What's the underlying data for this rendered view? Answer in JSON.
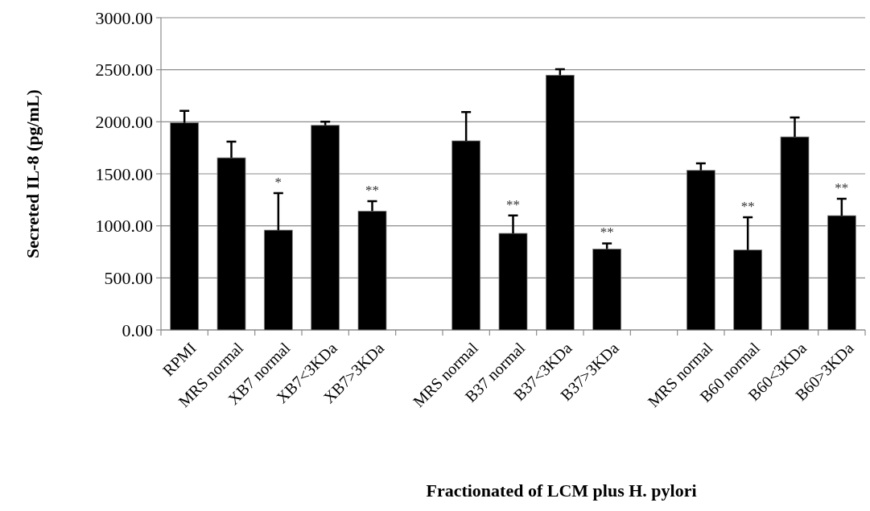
{
  "chart_data": {
    "type": "bar",
    "xlabel": "Fractionated of LCM plus H. pylori",
    "ylabel": "Secreted IL-8 (pg/mL)",
    "categories": [
      "RPMI",
      "MRS normal",
      "XB7 normal",
      "XB7<3KDa",
      "XB7>3KDa",
      null,
      "MRS normal",
      "B37 normal",
      "B37<3KDa",
      "B37>3KDa",
      null,
      "MRS normal",
      "B60 normal",
      "B60<3KDa",
      "B60>3KDa"
    ],
    "values": [
      1990,
      1654,
      959,
      1966,
      1142,
      null,
      1817,
      928,
      2448,
      778,
      null,
      1533,
      768,
      1855,
      1098
    ],
    "errors": [
      [
        1990,
        2105
      ],
      [
        1654,
        1809
      ],
      [
        959,
        1314
      ],
      [
        1966,
        2000
      ],
      [
        1142,
        1237
      ],
      null,
      [
        1817,
        2093
      ],
      [
        928,
        1100
      ],
      [
        2448,
        2505
      ],
      [
        778,
        832
      ],
      null,
      [
        1533,
        1600
      ],
      [
        768,
        1082
      ],
      [
        1855,
        2041
      ],
      [
        1098,
        1260
      ]
    ],
    "color": "#000000",
    "ylim": [
      0,
      3000
    ],
    "yticks": [
      {
        "value": 0,
        "label": "0.00"
      },
      {
        "value": 500,
        "label": "500.00"
      },
      {
        "value": 1000,
        "label": "1000.00"
      },
      {
        "value": 1500,
        "label": "1500.00"
      },
      {
        "value": 2000,
        "label": "2000.00"
      },
      {
        "value": 2500,
        "label": "2500.00"
      },
      {
        "value": 3000,
        "label": "3000.00"
      }
    ],
    "grid": "y",
    "value_labels": [
      null,
      null,
      "*",
      null,
      "**",
      null,
      null,
      "**",
      null,
      "**",
      null,
      null,
      "**",
      null,
      "**"
    ]
  }
}
